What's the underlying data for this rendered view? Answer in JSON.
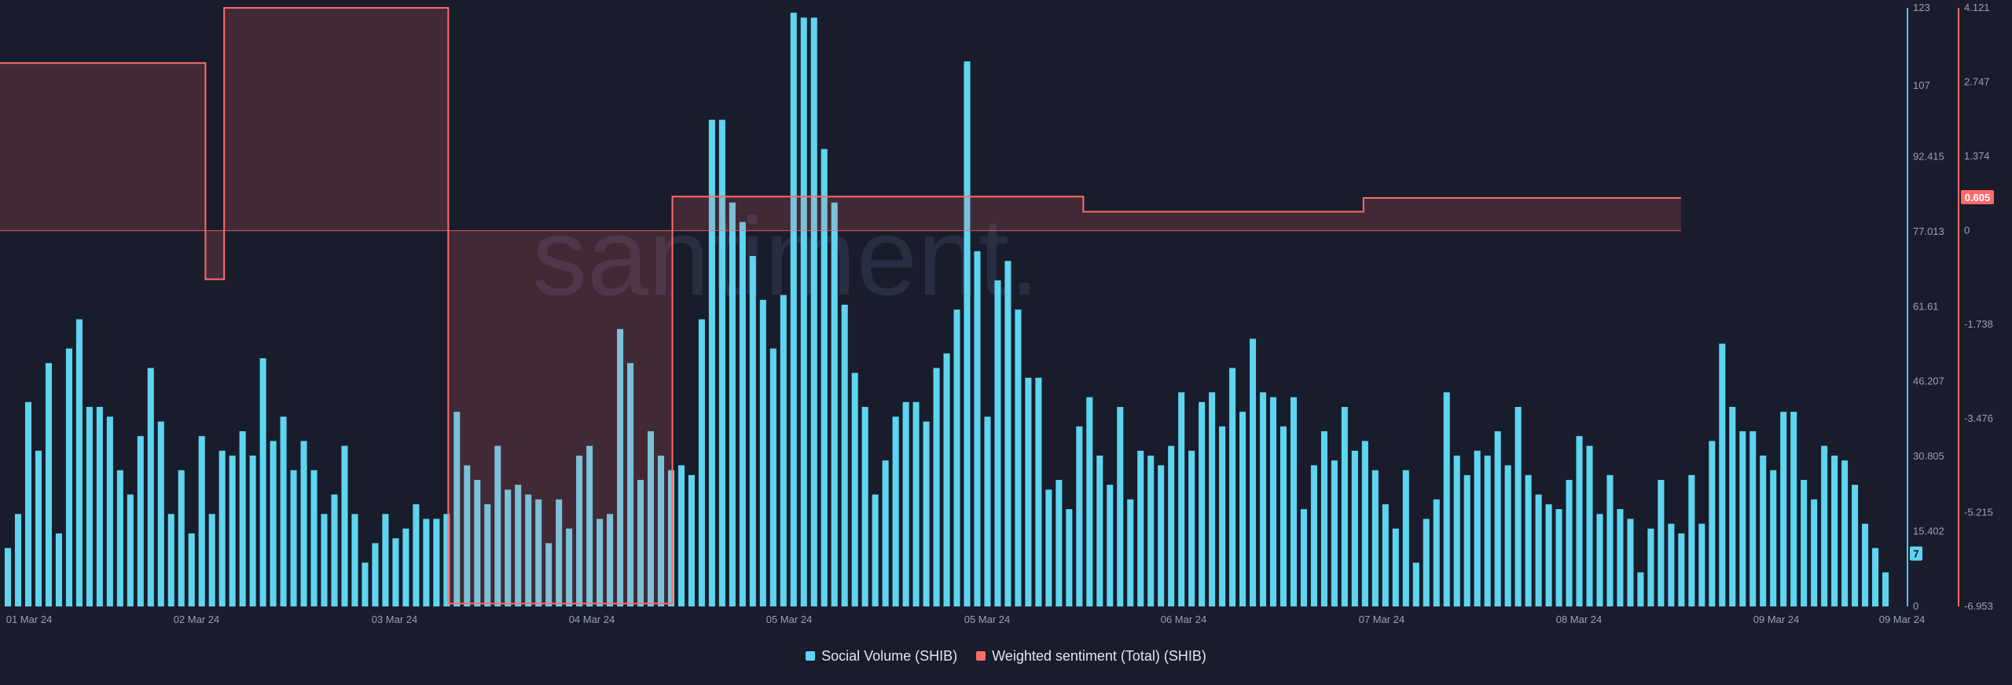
{
  "chart_data": {
    "type": "bar",
    "watermark": "santiment.",
    "x_axis": {
      "tick_labels": [
        "01 Mar 24",
        "02 Mar 24",
        "03 Mar 24",
        "04 Mar 24",
        "05 Mar 24",
        "05 Mar 24",
        "06 Mar 24",
        "07 Mar 24",
        "08 Mar 24",
        "09 Mar 24",
        "09 Mar 24"
      ]
    },
    "y_axis_left": {
      "label": "",
      "ticks": [
        "123",
        "107",
        "92.415",
        "77.013",
        "61.61",
        "46.207",
        "30.805",
        "15.402",
        "0"
      ],
      "range": [
        0,
        123
      ],
      "color": "#4fc3f7"
    },
    "y_axis_right": {
      "label": "",
      "ticks": [
        "4.121",
        "2.747",
        "1.374",
        "0",
        "-1.738",
        "-3.476",
        "-5.215",
        "-6.953"
      ],
      "range": [
        -6.953,
        4.121
      ],
      "color": "#ff6b6b"
    },
    "series": [
      {
        "name": "Social Volume (SHIB)",
        "type": "bar",
        "color": "#5ed5f0",
        "last_value_label": "7",
        "values": [
          12,
          19,
          42,
          32,
          50,
          15,
          53,
          59,
          41,
          41,
          39,
          28,
          23,
          35,
          49,
          38,
          19,
          28,
          15,
          35,
          19,
          32,
          31,
          36,
          31,
          51,
          34,
          39,
          28,
          34,
          28,
          19,
          23,
          33,
          19,
          9,
          13,
          19,
          14,
          16,
          21,
          18,
          18,
          19,
          40,
          29,
          26,
          21,
          33,
          24,
          25,
          23,
          22,
          13,
          22,
          16,
          31,
          33,
          18,
          19,
          57,
          50,
          26,
          36,
          31,
          28,
          29,
          27,
          59,
          100,
          100,
          83,
          79,
          72,
          63,
          53,
          64,
          122,
          121,
          121,
          94,
          83,
          62,
          48,
          41,
          23,
          30,
          39,
          42,
          42,
          38,
          49,
          52,
          61,
          112,
          73,
          39,
          67,
          71,
          61,
          47,
          47,
          24,
          26,
          20,
          37,
          43,
          31,
          25,
          41,
          22,
          32,
          31,
          29,
          33,
          44,
          32,
          42,
          44,
          37,
          49,
          40,
          55,
          44,
          43,
          37,
          43,
          20,
          29,
          36,
          30,
          41,
          32,
          34,
          28,
          21,
          16,
          28,
          9,
          18,
          22,
          44,
          31,
          27,
          32,
          31,
          36,
          29,
          41,
          27,
          23,
          21,
          20,
          26,
          35,
          33,
          19,
          27,
          20,
          18,
          7,
          16,
          26,
          17,
          15,
          27,
          17,
          34,
          54,
          41,
          36,
          36,
          31,
          28,
          40,
          40,
          26,
          22,
          33,
          31,
          30,
          25,
          17,
          12,
          7
        ]
      },
      {
        "name": "Weighted sentiment (Total) (SHIB)",
        "type": "step-area",
        "color": "#ff6b6b",
        "last_value_label": "0.605",
        "zero_baseline": 0,
        "steps": [
          {
            "from": "01 Mar 24 00:00",
            "to": "01 Mar 24 22:00",
            "value": 3.1
          },
          {
            "from": "01 Mar 24 22:00",
            "to": "02 Mar 24 00:00",
            "value": -0.9
          },
          {
            "from": "02 Mar 24 00:00",
            "to": "03 Mar 24 00:00",
            "value": 4.121
          },
          {
            "from": "03 Mar 24 00:00",
            "to": "04 Mar 24 00:00",
            "value": -6.9
          },
          {
            "from": "04 Mar 24 00:00",
            "to": "05 Mar 24 20:00",
            "value": 0.63
          },
          {
            "from": "05 Mar 24 20:00",
            "to": "07 Mar 24 02:00",
            "value": 0.35
          },
          {
            "from": "07 Mar 24 02:00",
            "to": "08 Mar 24 12:00",
            "value": 0.605
          }
        ]
      }
    ],
    "legend_position": "bottom-center",
    "grid": false
  }
}
